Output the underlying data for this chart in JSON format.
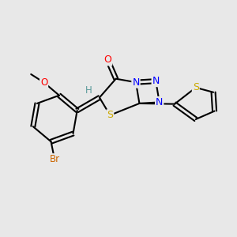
{
  "background_color": "#e8e8e8",
  "bond_color": "#000000",
  "atom_colors": {
    "O": "#ff0000",
    "N": "#0000ff",
    "S": "#ccaa00",
    "Br": "#cc6600",
    "C": "#000000",
    "H": "#5a9a9a"
  },
  "figsize": [
    3.0,
    3.0
  ],
  "dpi": 100
}
